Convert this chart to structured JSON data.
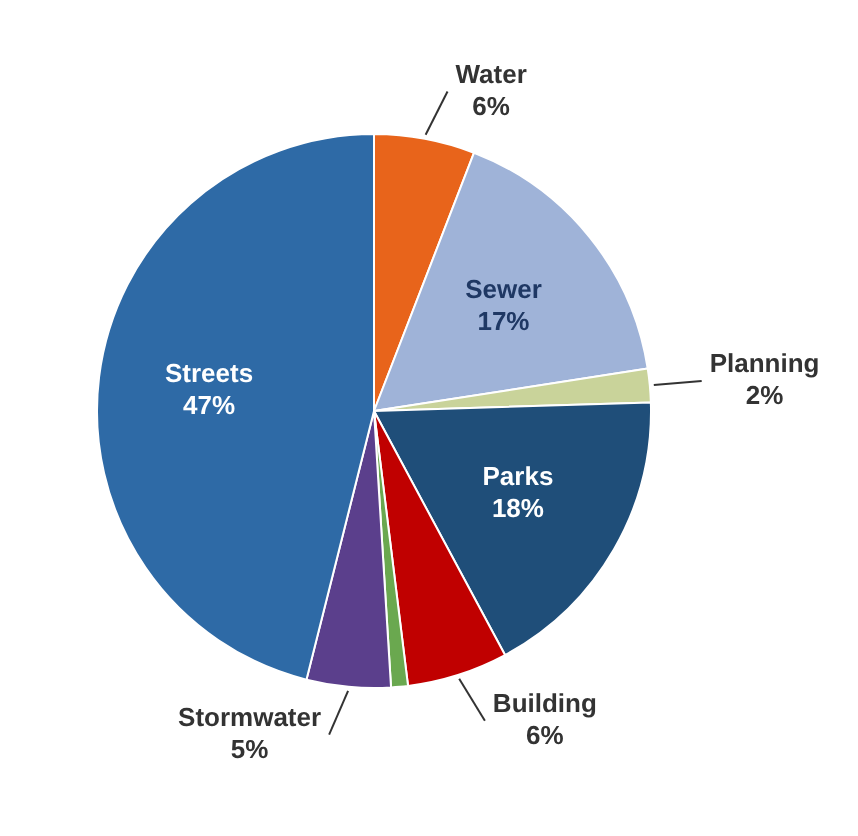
{
  "chart_data": {
    "type": "pie",
    "categories": [
      "Water",
      "Sewer",
      "Planning",
      "Parks",
      "Building",
      null,
      "Stormwater",
      "Streets"
    ],
    "values": [
      6,
      17,
      2,
      18,
      6,
      1,
      5,
      47
    ],
    "value_labels": [
      "6%",
      "17%",
      "2%",
      "18%",
      "6%",
      null,
      "5%",
      "47%"
    ],
    "colors": [
      "#e8641b",
      "#9fb3d8",
      "#c9d39a",
      "#1f4e79",
      "#c00000",
      "#6aa84f",
      "#5b3f8c",
      "#2e6aa6"
    ]
  }
}
